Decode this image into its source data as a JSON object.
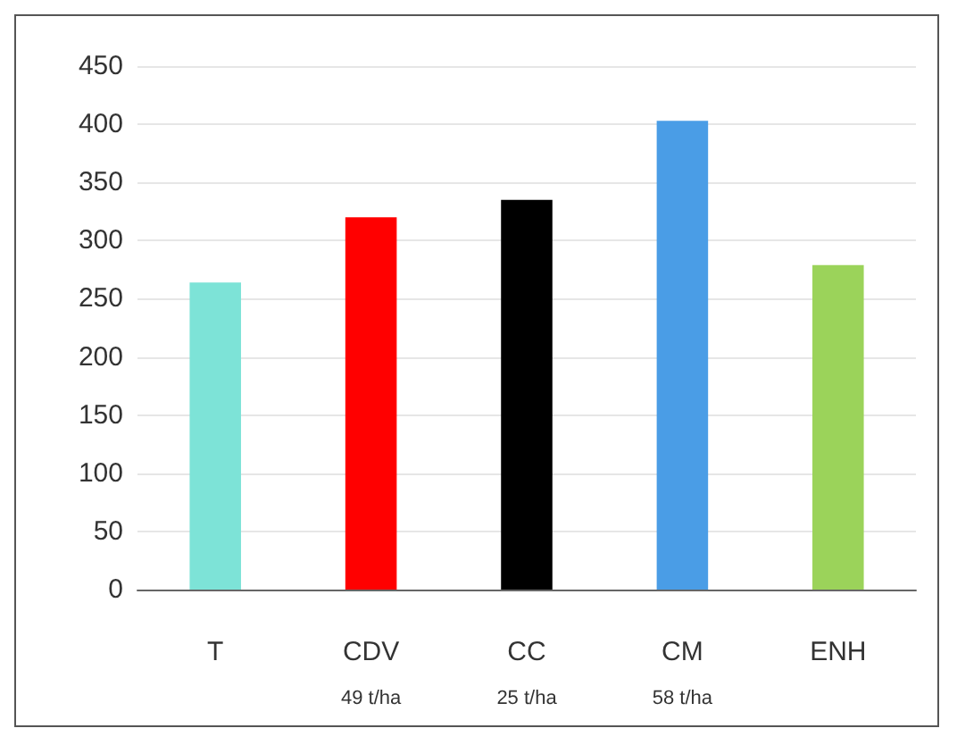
{
  "chart_data": {
    "type": "bar",
    "categories": [
      "T",
      "CDV\n49 t/ha",
      "CC\n25 t/ha",
      "CM\n58 t/ha",
      "ENH"
    ],
    "values": [
      264,
      320,
      335,
      403,
      279
    ],
    "colors": [
      "#7de3d7",
      "#ff0000",
      "#000000",
      "#4a9de6",
      "#9bd35a"
    ],
    "ylim": [
      0,
      450
    ],
    "yticks": [
      0,
      50,
      100,
      150,
      200,
      250,
      300,
      350,
      400,
      450
    ],
    "grid": "y"
  }
}
